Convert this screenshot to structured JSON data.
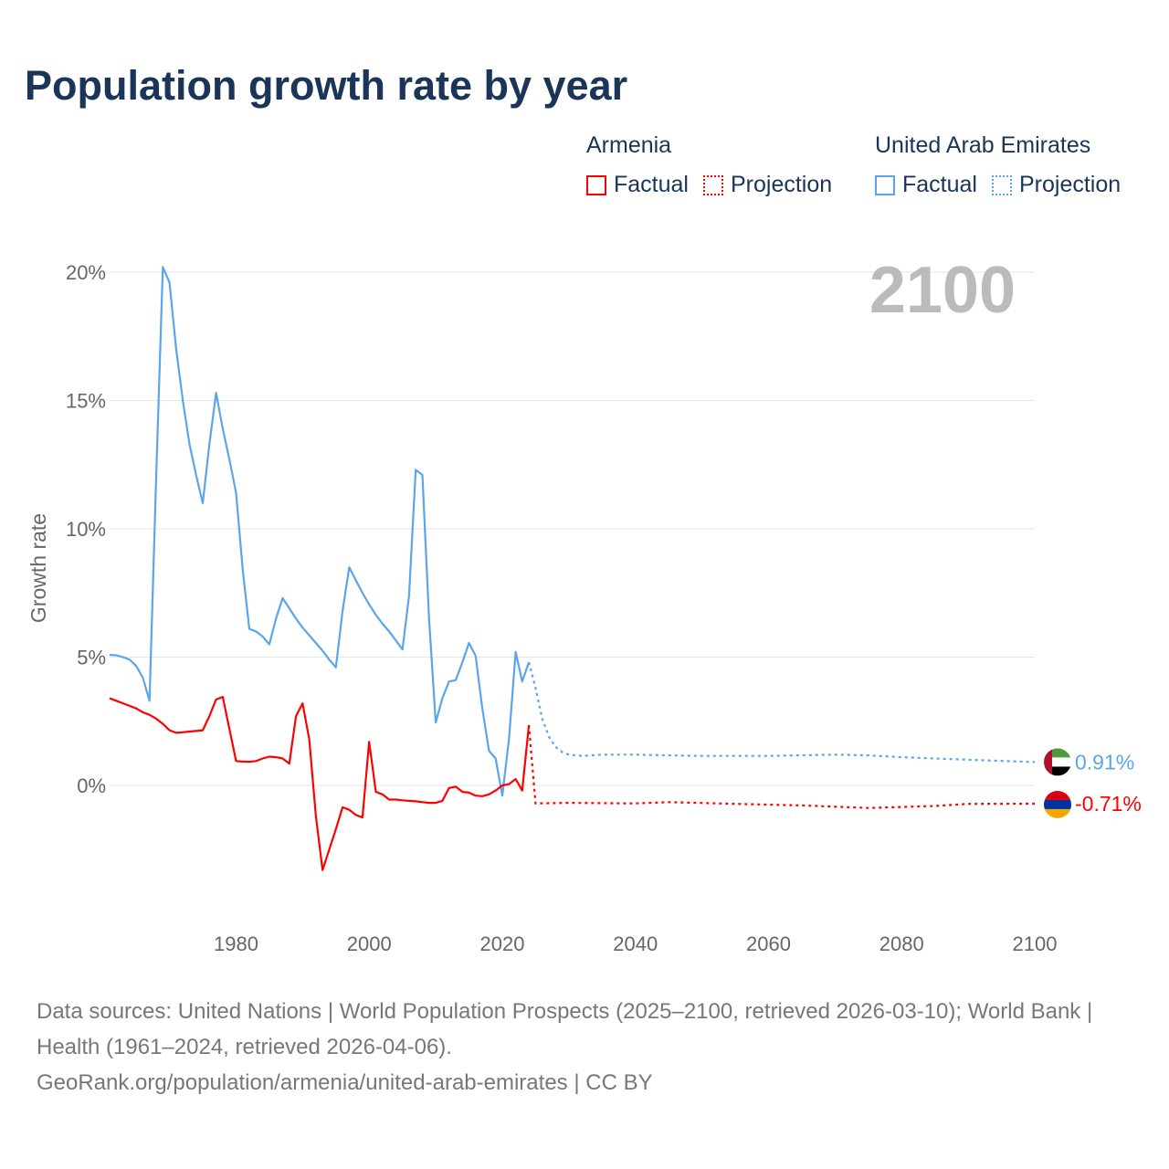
{
  "title": "Population growth rate by year",
  "legend": {
    "groups": [
      {
        "name": "Armenia",
        "factual": "Factual",
        "projection": "Projection",
        "color": "#ff0000"
      },
      {
        "name": "United Arab Emirates",
        "factual": "Factual",
        "projection": "Projection",
        "color": "#5aa5eb"
      }
    ]
  },
  "year_watermark": "2100",
  "footer": {
    "sources": "Data sources: United Nations | World Population Prospects (2025–2100, retrieved 2026-03-10); World Bank | Health (1961–2024, retrieved 2026-04-06).",
    "link": "GeoRank.org/population/armenia/united-arab-emirates | CC BY"
  },
  "chart_data": {
    "type": "line",
    "ylabel": "Growth rate",
    "xlabel": "",
    "xlim": [
      1961,
      2100
    ],
    "ylim": [
      -5.3,
      21
    ],
    "x_ticks": [
      {
        "v": 1980,
        "label": "1980"
      },
      {
        "v": 2000,
        "label": "2000"
      },
      {
        "v": 2020,
        "label": "2020"
      },
      {
        "v": 2040,
        "label": "2040"
      },
      {
        "v": 2060,
        "label": "2060"
      },
      {
        "v": 2080,
        "label": "2080"
      },
      {
        "v": 2100,
        "label": "2100"
      }
    ],
    "y_ticks": [
      {
        "v": 0,
        "label": "0%"
      },
      {
        "v": 5,
        "label": "5%"
      },
      {
        "v": 10,
        "label": "10%"
      },
      {
        "v": 15,
        "label": "15%"
      },
      {
        "v": 20,
        "label": "20%"
      }
    ],
    "grid": true,
    "series": [
      {
        "name": "United Arab Emirates",
        "color": "#5aa5eb",
        "end_label": "0.91%",
        "factual": {
          "x": [
            1961,
            1962,
            1963,
            1964,
            1965,
            1966,
            1967,
            1968,
            1969,
            1970,
            1971,
            1972,
            1973,
            1974,
            1975,
            1976,
            1977,
            1978,
            1979,
            1980,
            1981,
            1982,
            1983,
            1984,
            1985,
            1986,
            1987,
            1988,
            1989,
            1990,
            1991,
            1992,
            1993,
            1994,
            1995,
            1996,
            1997,
            1998,
            1999,
            2000,
            2001,
            2002,
            2003,
            2004,
            2005,
            2006,
            2007,
            2008,
            2009,
            2010,
            2011,
            2012,
            2013,
            2014,
            2015,
            2016,
            2017,
            2018,
            2019,
            2020,
            2021,
            2022,
            2023,
            2024
          ],
          "y": [
            5.09,
            5.07,
            5.0,
            4.9,
            4.65,
            4.2,
            3.3,
            12.0,
            20.2,
            19.6,
            17.0,
            15.0,
            13.3,
            12.1,
            11.0,
            13.3,
            15.3,
            13.9,
            12.7,
            11.4,
            8.4,
            6.1,
            6.0,
            5.8,
            5.5,
            6.5,
            7.3,
            6.9,
            6.5,
            6.15,
            5.85,
            5.55,
            5.25,
            4.9,
            4.6,
            6.8,
            8.5,
            8.0,
            7.5,
            7.05,
            6.65,
            6.3,
            6.0,
            5.65,
            5.3,
            7.4,
            12.3,
            12.1,
            6.5,
            2.45,
            3.4,
            4.05,
            4.1,
            4.8,
            5.55,
            5.05,
            3.0,
            1.35,
            1.05,
            -0.4,
            1.8,
            5.2,
            4.05,
            4.8
          ]
        },
        "projection": {
          "x": [
            2024,
            2025,
            2026,
            2027,
            2028,
            2029,
            2030,
            2032,
            2035,
            2040,
            2045,
            2050,
            2060,
            2070,
            2075,
            2080,
            2090,
            2100
          ],
          "y": [
            4.8,
            3.8,
            2.6,
            1.9,
            1.5,
            1.3,
            1.2,
            1.15,
            1.2,
            1.2,
            1.17,
            1.15,
            1.15,
            1.2,
            1.17,
            1.1,
            1.0,
            0.91
          ]
        }
      },
      {
        "name": "Armenia",
        "color": "#ff0000",
        "end_label": "-0.71%",
        "factual": {
          "x": [
            1961,
            1962,
            1963,
            1964,
            1965,
            1966,
            1967,
            1968,
            1969,
            1970,
            1971,
            1972,
            1973,
            1974,
            1975,
            1976,
            1977,
            1978,
            1979,
            1980,
            1981,
            1982,
            1983,
            1984,
            1985,
            1986,
            1987,
            1988,
            1989,
            1990,
            1991,
            1992,
            1993,
            1994,
            1995,
            1996,
            1997,
            1998,
            1999,
            2000,
            2001,
            2002,
            2003,
            2004,
            2005,
            2006,
            2007,
            2008,
            2009,
            2010,
            2011,
            2012,
            2013,
            2014,
            2015,
            2016,
            2017,
            2018,
            2019,
            2020,
            2021,
            2022,
            2023,
            2024
          ],
          "y": [
            3.4,
            3.3,
            3.2,
            3.1,
            3.0,
            2.85,
            2.75,
            2.6,
            2.4,
            2.15,
            2.05,
            2.07,
            2.1,
            2.12,
            2.15,
            2.7,
            3.35,
            3.45,
            2.2,
            0.95,
            0.93,
            0.92,
            0.95,
            1.05,
            1.12,
            1.1,
            1.05,
            0.85,
            2.7,
            3.2,
            1.8,
            -1.2,
            -3.3,
            -2.5,
            -1.7,
            -0.85,
            -0.95,
            -1.15,
            -1.25,
            1.7,
            -0.25,
            -0.35,
            -0.55,
            -0.55,
            -0.58,
            -0.6,
            -0.62,
            -0.65,
            -0.68,
            -0.68,
            -0.6,
            -0.1,
            -0.05,
            -0.25,
            -0.28,
            -0.4,
            -0.42,
            -0.35,
            -0.2,
            0.0,
            0.05,
            0.25,
            -0.2,
            2.35
          ]
        },
        "projection": {
          "x": [
            2024,
            2025,
            2030,
            2040,
            2045,
            2055,
            2065,
            2075,
            2085,
            2090,
            2100
          ],
          "y": [
            2.35,
            -0.7,
            -0.68,
            -0.7,
            -0.65,
            -0.72,
            -0.78,
            -0.88,
            -0.8,
            -0.72,
            -0.71
          ]
        }
      }
    ]
  }
}
